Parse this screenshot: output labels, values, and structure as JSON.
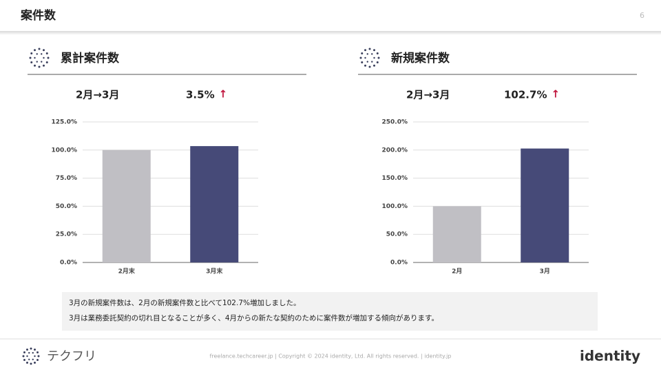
{
  "header": {
    "title": "案件数",
    "page": "6"
  },
  "chart_data": [
    {
      "type": "bar",
      "title": "累計案件数",
      "period": "2月→3月",
      "change": "3.5%",
      "arrow": "↑",
      "categories": [
        "2月末",
        "3月末"
      ],
      "values": [
        100,
        103.5
      ],
      "colors": [
        "#c0bfc4",
        "#464a78"
      ],
      "ylim": [
        0,
        125
      ],
      "yticks": [
        {
          "value": 0,
          "label": "0.0%"
        },
        {
          "value": 25,
          "label": "25.0%"
        },
        {
          "value": 50,
          "label": "50.0%"
        },
        {
          "value": 75,
          "label": "75.0%"
        },
        {
          "value": 100,
          "label": "100.0%"
        },
        {
          "value": 125,
          "label": "125.0%"
        }
      ],
      "grid": true
    },
    {
      "type": "bar",
      "title": "新規案件数",
      "period": "2月→3月",
      "change": "102.7%",
      "arrow": "↑",
      "categories": [
        "2月",
        "3月"
      ],
      "values": [
        100,
        202.7
      ],
      "colors": [
        "#c0bfc4",
        "#464a78"
      ],
      "ylim": [
        0,
        250
      ],
      "yticks": [
        {
          "value": 0,
          "label": "0.0%"
        },
        {
          "value": 50,
          "label": "50.0%"
        },
        {
          "value": 100,
          "label": "100.0%"
        },
        {
          "value": 150,
          "label": "150.0%"
        },
        {
          "value": 200,
          "label": "200.0%"
        },
        {
          "value": 250,
          "label": "250.0%"
        }
      ],
      "grid": true
    }
  ],
  "note": [
    "3月の新規案件数は、2月の新規案件数と比べて102.7%増加しました。",
    "3月は業務委託契約の切れ目となることが多く、4月からの新たな契約のために案件数が増加する傾向があります。"
  ],
  "footer": {
    "logo": "テクフリ",
    "text": "freelance.techcareer.jp  |  Copyright © 2024 identity, Ltd. All rights reserved.  |  identity.jp",
    "brand": "identity"
  }
}
